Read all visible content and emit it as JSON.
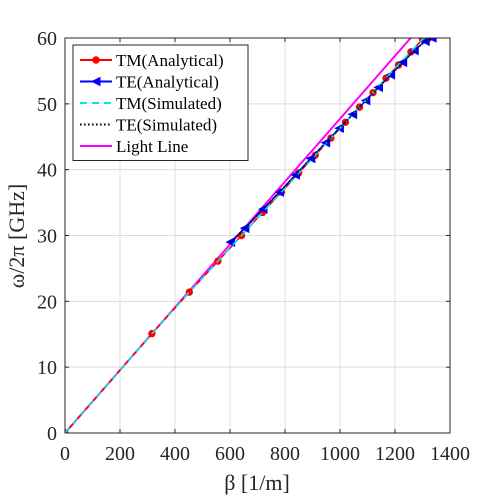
{
  "chart_data": {
    "type": "line",
    "xlabel": "β [1/m]",
    "ylabel": "ω/2π [GHz]",
    "xlim": [
      0,
      1400
    ],
    "ylim": [
      0,
      60
    ],
    "xticks": [
      0,
      200,
      400,
      600,
      800,
      1000,
      1200,
      1400
    ],
    "yticks": [
      0,
      10,
      20,
      30,
      40,
      50,
      60
    ],
    "grid": true,
    "legend_position": "top-left",
    "series": [
      {
        "name": "TM(Analytical)",
        "color": "#ff0000",
        "dash": "solid",
        "marker": "circle",
        "x": [
          0,
          316,
          452,
          556,
          642,
          718,
          787,
          850,
          910,
          967,
          1020,
          1071,
          1120,
          1167,
          1213,
          1258,
          1300,
          1323
        ],
        "y": [
          0,
          15.1,
          21.4,
          26.1,
          30.0,
          33.5,
          36.6,
          39.5,
          42.2,
          44.8,
          47.2,
          49.5,
          51.7,
          53.9,
          55.9,
          57.9,
          59.8,
          60.0
        ]
      },
      {
        "name": "TE(Analytical)",
        "color": "#0000ff",
        "dash": "solid",
        "marker": "triangle-left",
        "x": [
          602,
          654,
          720,
          780,
          838,
          894,
          948,
          998,
          1046,
          1094,
          1140,
          1184,
          1228,
          1270,
          1310,
          1335
        ],
        "y": [
          29.0,
          31.1,
          34.0,
          36.6,
          39.2,
          41.7,
          44.1,
          46.3,
          48.4,
          50.5,
          52.5,
          54.4,
          56.3,
          58.1,
          59.5,
          60.0
        ]
      },
      {
        "name": "TM(Simulated)",
        "color": "#00e5e5",
        "dash": "dashed",
        "marker": "none",
        "x": [
          0,
          316,
          452,
          556,
          642,
          718,
          787,
          850,
          910,
          967,
          1020,
          1071,
          1120,
          1167,
          1213,
          1258,
          1300,
          1335
        ],
        "y": [
          0,
          15.1,
          21.4,
          26.1,
          30.0,
          33.5,
          36.6,
          39.5,
          42.2,
          44.8,
          47.2,
          49.5,
          51.7,
          53.9,
          55.9,
          57.9,
          59.8,
          60.5
        ]
      },
      {
        "name": "TE(Simulated)",
        "color": "#000000",
        "dash": "dotted",
        "marker": "none",
        "x": [
          602,
          654,
          720,
          780,
          838,
          894,
          948,
          998,
          1046,
          1094,
          1140,
          1184,
          1228,
          1270,
          1310,
          1335
        ],
        "y": [
          29.0,
          31.1,
          34.0,
          36.6,
          39.2,
          41.7,
          44.1,
          46.3,
          48.4,
          50.5,
          52.5,
          54.4,
          56.3,
          58.1,
          59.5,
          60.0
        ]
      },
      {
        "name": "Light Line",
        "color": "#ff00ff",
        "dash": "solid",
        "marker": "none",
        "x": [
          0,
          1257
        ],
        "y": [
          0,
          60
        ]
      }
    ]
  }
}
